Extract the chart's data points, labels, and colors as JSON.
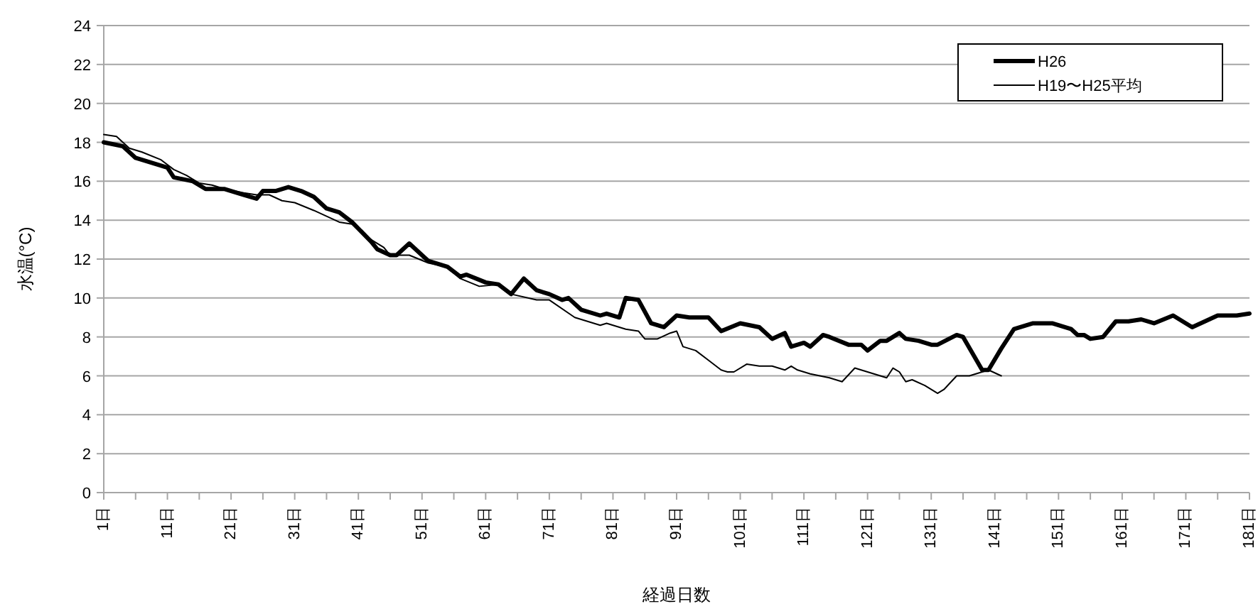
{
  "chart_data": {
    "type": "line",
    "ylabel": "水温(°C)",
    "xlabel": "経過日数",
    "xlim": [
      1,
      181
    ],
    "xticks": [
      {
        "value": 1,
        "label": "1日"
      },
      {
        "value": 6,
        "label": null
      },
      {
        "value": 11,
        "label": "11日"
      },
      {
        "value": 16,
        "label": null
      },
      {
        "value": 21,
        "label": "21日"
      },
      {
        "value": 26,
        "label": null
      },
      {
        "value": 31,
        "label": "31日"
      },
      {
        "value": 36,
        "label": null
      },
      {
        "value": 41,
        "label": "41日"
      },
      {
        "value": 46,
        "label": null
      },
      {
        "value": 51,
        "label": "51日"
      },
      {
        "value": 56,
        "label": null
      },
      {
        "value": 61,
        "label": "61日"
      },
      {
        "value": 66,
        "label": null
      },
      {
        "value": 71,
        "label": "71日"
      },
      {
        "value": 76,
        "label": null
      },
      {
        "value": 81,
        "label": "81日"
      },
      {
        "value": 86,
        "label": null
      },
      {
        "value": 91,
        "label": "91日"
      },
      {
        "value": 96,
        "label": null
      },
      {
        "value": 101,
        "label": "101日"
      },
      {
        "value": 106,
        "label": null
      },
      {
        "value": 111,
        "label": "111日"
      },
      {
        "value": 116,
        "label": null
      },
      {
        "value": 121,
        "label": "121日"
      },
      {
        "value": 126,
        "label": null
      },
      {
        "value": 131,
        "label": "131日"
      },
      {
        "value": 136,
        "label": null
      },
      {
        "value": 141,
        "label": "141日"
      },
      {
        "value": 146,
        "label": null
      },
      {
        "value": 151,
        "label": "151日"
      },
      {
        "value": 156,
        "label": null
      },
      {
        "value": 161,
        "label": "161日"
      },
      {
        "value": 166,
        "label": null
      },
      {
        "value": 171,
        "label": "171日"
      },
      {
        "value": 176,
        "label": null
      },
      {
        "value": 181,
        "label": "181日"
      }
    ],
    "ylim": [
      0,
      24
    ],
    "yticks": [
      0,
      2,
      4,
      6,
      8,
      10,
      12,
      14,
      16,
      18,
      20,
      22,
      24
    ],
    "grid": "y",
    "legend": "top right",
    "series": [
      {
        "name": "H26",
        "color": "#000000",
        "x": [
          1,
          4,
          6,
          9,
          11,
          12,
          15,
          17,
          20,
          23,
          25,
          26,
          28,
          30,
          32,
          34,
          36,
          38,
          40,
          43,
          44,
          46,
          47,
          49,
          52,
          55,
          57,
          58,
          61,
          63,
          65,
          67,
          69,
          71,
          73,
          74,
          76,
          79,
          80,
          82,
          83,
          85,
          87,
          89,
          91,
          93,
          96,
          98,
          101,
          104,
          106,
          108,
          109,
          111,
          112,
          114,
          115,
          118,
          120,
          121,
          123,
          124,
          126,
          127,
          129,
          131,
          132,
          135,
          136,
          139,
          140,
          142,
          144,
          147,
          150,
          151,
          153,
          154,
          155,
          156,
          158,
          160,
          162,
          164,
          166,
          169,
          171,
          172,
          174,
          176,
          177,
          179,
          181
        ],
        "values": [
          18.0,
          17.8,
          17.2,
          16.9,
          16.7,
          16.2,
          16.0,
          15.6,
          15.6,
          15.3,
          15.1,
          15.5,
          15.5,
          15.7,
          15.5,
          15.2,
          14.6,
          14.4,
          13.9,
          12.9,
          12.5,
          12.2,
          12.2,
          12.8,
          11.9,
          11.6,
          11.1,
          11.2,
          10.8,
          10.7,
          10.2,
          11.0,
          10.4,
          10.2,
          9.9,
          10.0,
          9.4,
          9.1,
          9.2,
          9.0,
          10.0,
          9.9,
          8.7,
          8.5,
          9.1,
          9.0,
          9.0,
          8.3,
          8.7,
          8.5,
          7.9,
          8.2,
          7.5,
          7.7,
          7.5,
          8.1,
          8.0,
          7.6,
          7.6,
          7.3,
          7.8,
          7.8,
          8.2,
          7.9,
          7.8,
          7.6,
          7.6,
          8.1,
          8.0,
          6.3,
          6.3,
          7.4,
          8.4,
          8.7,
          8.7,
          8.6,
          8.4,
          8.1,
          8.1,
          7.9,
          8.0,
          8.8,
          8.8,
          8.9,
          8.7,
          9.1,
          8.7,
          8.5,
          8.8,
          9.1,
          9.1,
          9.1,
          9.2
        ]
      },
      {
        "name": "H19〜H25平均",
        "color": "#000000",
        "x": [
          1,
          3,
          5,
          7,
          10,
          12,
          14,
          16,
          18,
          20,
          23,
          25,
          27,
          29,
          31,
          34,
          36,
          38,
          40,
          42,
          45,
          46,
          49,
          52,
          55,
          57,
          60,
          63,
          65,
          69,
          71,
          75,
          79,
          80,
          83,
          85,
          86,
          88,
          90,
          91,
          92,
          94,
          96,
          98,
          99,
          100,
          102,
          104,
          106,
          108,
          109,
          110,
          112,
          115,
          117,
          119,
          121,
          124,
          125,
          126,
          127,
          128,
          130,
          132,
          133,
          135,
          137,
          139,
          140,
          142
        ],
        "values": [
          18.4,
          18.3,
          17.7,
          17.5,
          17.1,
          16.6,
          16.3,
          15.9,
          15.8,
          15.6,
          15.4,
          15.3,
          15.3,
          15.0,
          14.9,
          14.5,
          14.2,
          13.9,
          13.8,
          13.2,
          12.6,
          12.2,
          12.2,
          11.8,
          11.6,
          11.0,
          10.6,
          10.7,
          10.2,
          9.9,
          9.9,
          9.0,
          8.6,
          8.7,
          8.4,
          8.3,
          7.9,
          7.9,
          8.2,
          8.3,
          7.5,
          7.3,
          6.8,
          6.3,
          6.2,
          6.2,
          6.6,
          6.5,
          6.5,
          6.3,
          6.5,
          6.3,
          6.1,
          5.9,
          5.7,
          6.4,
          6.2,
          5.9,
          6.4,
          6.2,
          5.7,
          5.8,
          5.5,
          5.1,
          5.3,
          6.0,
          6.0,
          6.2,
          6.3,
          6.0
        ]
      }
    ]
  }
}
